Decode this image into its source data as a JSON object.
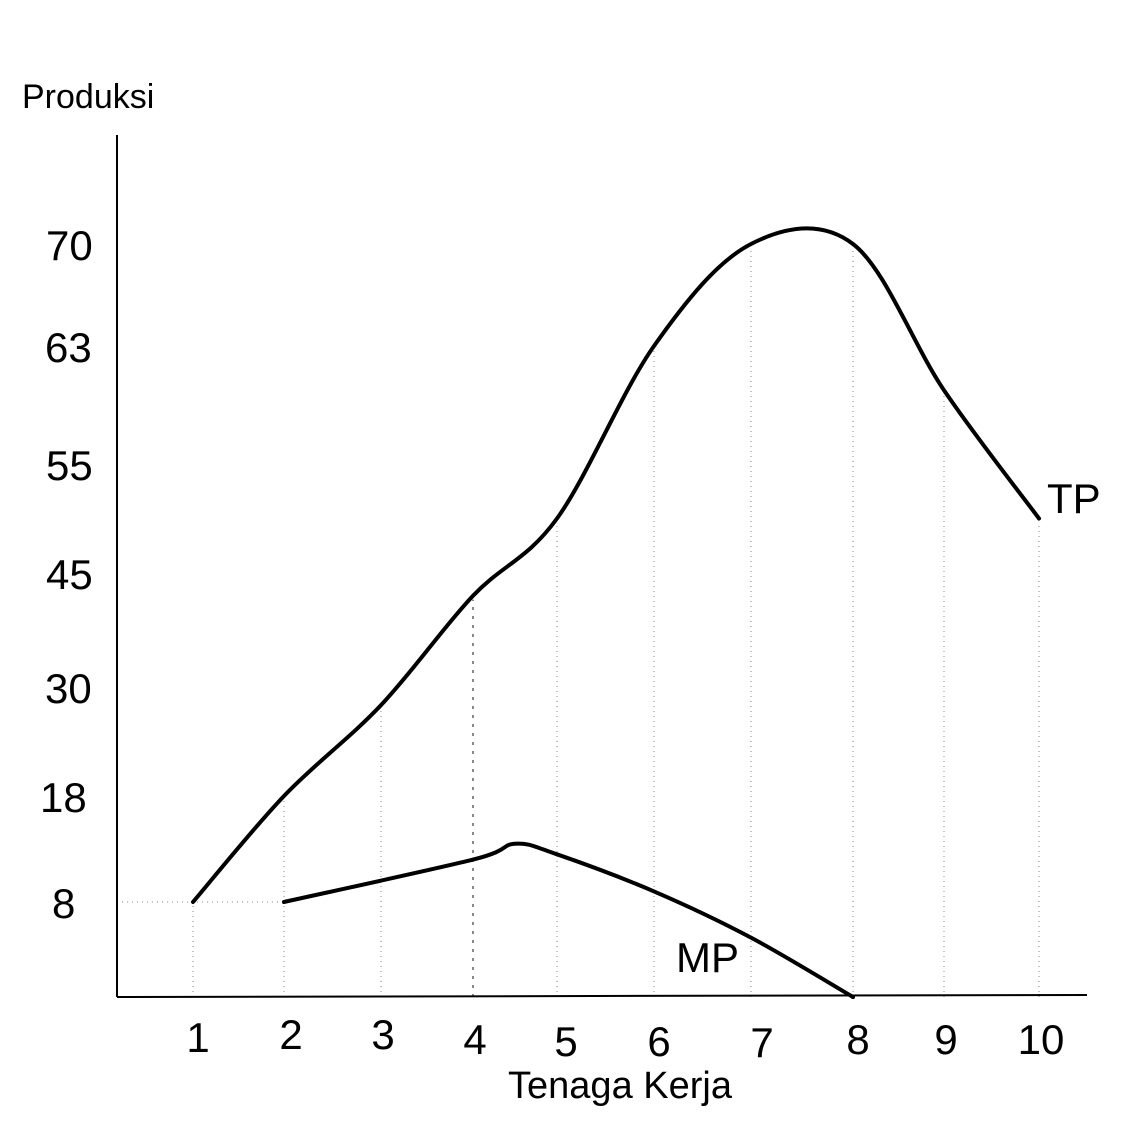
{
  "chart_data": {
    "type": "line",
    "title": "",
    "ylabel": "Produksi",
    "xlabel": "Tenaga Kerja",
    "categories": [
      1,
      2,
      3,
      4,
      5,
      6,
      7,
      8,
      9,
      10
    ],
    "y_ticks": [
      8,
      18,
      30,
      45,
      55,
      63,
      70
    ],
    "grid": "dotted vertical guides at each x, dotted horizontal guide at y=8",
    "series": [
      {
        "name": "TP",
        "x": [
          1,
          2,
          3,
          4,
          5,
          6,
          7,
          8,
          9,
          10
        ],
        "values": [
          8,
          18,
          28,
          42,
          50,
          63,
          70,
          70,
          60,
          50
        ]
      },
      {
        "name": "MP",
        "x": [
          2,
          4,
          4.5,
          5,
          6,
          7,
          8
        ],
        "values": [
          8,
          12,
          13.5,
          12.5,
          9,
          5,
          0
        ]
      }
    ]
  }
}
